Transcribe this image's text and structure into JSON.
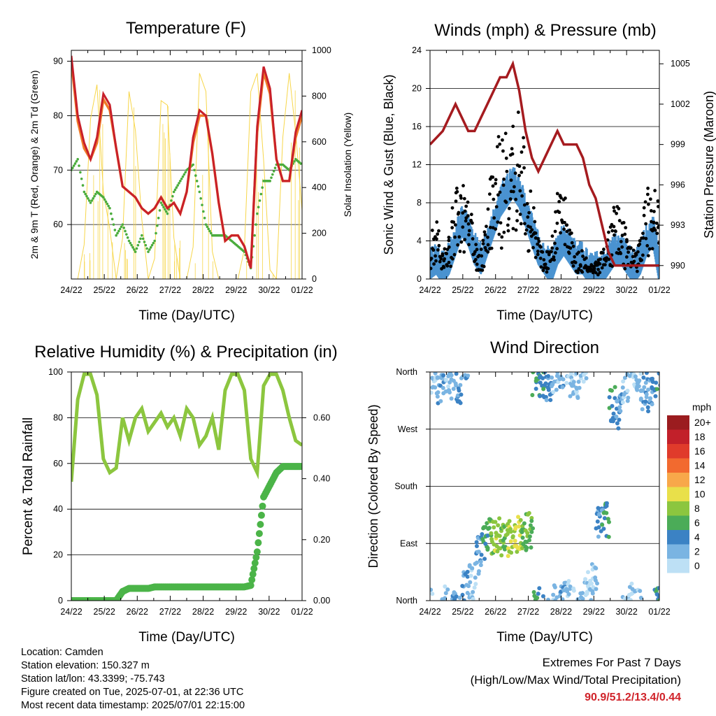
{
  "x_tick_labels": [
    "24/22",
    "25/22",
    "26/22",
    "27/22",
    "28/22",
    "29/22",
    "30/22",
    "01/22"
  ],
  "info": {
    "location": "Location: Camden",
    "elevation": "Station elevation: 150.327 m",
    "latlon": "Station lat/lon: 43.3399; -75.743",
    "created": "Figure created on Tue, 2025-07-01, at 22:36 UTC",
    "latest": "Most recent data timestamp: 2025/07/01 22:15:00"
  },
  "extremes": {
    "title": "Extremes For Past 7 Days",
    "subtitle": "(High/Low/Max Wind/Total Precipitation)",
    "values": "90.9/51.2/13.4/0.44"
  },
  "colors": {
    "temp_red": "#c8202a",
    "temp_orange": "#f07a28",
    "dewpoint_green": "#4aac3c",
    "solar_yellow": "#f7d64a",
    "wind_blue": "#4a93d0",
    "gust_black": "#000000",
    "pressure_maroon": "#a51b1f",
    "rh_green": "#8cc63f",
    "rain_green": "#4bb448"
  },
  "chart_data": [
    {
      "type": "line",
      "title": "Temperature (F)",
      "xlabel": "Time (Day/UTC)",
      "ylabel": "2m & 9m T (Red, Orange) & 2m Td (Green)",
      "y2label": "Solar Insolation (Yellow)",
      "ylim": [
        50,
        92
      ],
      "yticks": [
        60,
        70,
        80,
        90
      ],
      "y2lim": [
        0,
        1000
      ],
      "y2ticks": [
        0,
        200,
        400,
        600,
        800,
        1000
      ],
      "x": [
        "24/22",
        "24/18",
        "25/00",
        "25/06",
        "25/12",
        "25/18",
        "25/22",
        "26/03",
        "26/08",
        "26/13",
        "26/18",
        "26/22",
        "27/04",
        "27/09",
        "27/13",
        "27/18",
        "27/22",
        "28/00",
        "28/05",
        "28/10",
        "28/15",
        "28/20",
        "29/02",
        "29/08",
        "29/13",
        "29/18",
        "29/22",
        "30/03",
        "30/08",
        "30/14",
        "30/19",
        "30/22",
        "01/02",
        "01/06",
        "01/12",
        "01/18",
        "01/22"
      ],
      "series": [
        {
          "name": "2m T",
          "values": [
            91,
            80,
            75,
            72,
            76,
            84,
            82,
            74,
            67,
            66,
            65,
            63,
            62,
            63,
            65,
            63,
            64,
            62,
            66,
            76,
            81,
            80,
            73,
            64,
            57,
            58,
            58,
            56,
            52,
            78,
            89,
            85,
            72,
            68,
            68,
            77,
            81
          ]
        },
        {
          "name": "9m T",
          "values": [
            90,
            79,
            74,
            72,
            75,
            83,
            81,
            74,
            67,
            66,
            65,
            63,
            62,
            63,
            65,
            63,
            64,
            62,
            66,
            75,
            80,
            80,
            73,
            64,
            57,
            58,
            58,
            56,
            52,
            77,
            88,
            84,
            72,
            68,
            68,
            76,
            80
          ]
        },
        {
          "name": "2m Td",
          "values": [
            70,
            72,
            66,
            64,
            66,
            65,
            63,
            58,
            60,
            57,
            55,
            58,
            55,
            57,
            64,
            62,
            66,
            68,
            70,
            71,
            66,
            60,
            58,
            58,
            58,
            57,
            56,
            55,
            52,
            62,
            68,
            68,
            71,
            71,
            70,
            72,
            71
          ]
        },
        {
          "name": "Solar",
          "values": [
            0,
            0,
            150,
            700,
            850,
            380,
            220,
            0,
            180,
            820,
            650,
            260,
            0,
            90,
            780,
            760,
            180,
            0,
            0,
            140,
            900,
            820,
            120,
            0,
            0,
            0,
            0,
            130,
            820,
            900,
            520,
            40,
            0,
            620,
            900,
            640,
            300
          ]
        }
      ]
    },
    {
      "type": "scatter",
      "title": "Winds (mph) & Pressure (mb)",
      "xlabel": "Time (Day/UTC)",
      "ylabel": "Sonic Wind & Gust (Blue, Black)",
      "y2label": "Station Pressure (Maroon)",
      "ylim": [
        0,
        24
      ],
      "yticks": [
        0,
        4,
        8,
        12,
        16,
        20,
        24
      ],
      "y2lim": [
        989,
        1006
      ],
      "y2ticks": [
        990,
        993,
        996,
        999,
        1002,
        1005
      ],
      "x": [
        "24/22",
        "24/18",
        "25/00",
        "25/06",
        "25/12",
        "25/18",
        "25/22",
        "26/03",
        "26/08",
        "26/13",
        "26/18",
        "26/22",
        "27/04",
        "27/09",
        "27/13",
        "27/18",
        "27/22",
        "28/00",
        "28/05",
        "28/10",
        "28/15",
        "28/20",
        "29/02",
        "29/08",
        "29/13",
        "29/18",
        "29/22",
        "30/03",
        "30/08",
        "30/14",
        "30/19",
        "30/22",
        "01/02",
        "01/06",
        "01/12",
        "01/18",
        "01/22"
      ],
      "series": [
        {
          "name": "Wind",
          "values": [
            1.5,
            2,
            1,
            2,
            4,
            6,
            5,
            3,
            2,
            4,
            6,
            8,
            9,
            10,
            9,
            7,
            5,
            3,
            2,
            1,
            3,
            4,
            3,
            2,
            2,
            1,
            1,
            1,
            2,
            3,
            3,
            2,
            1,
            2,
            4,
            5,
            1
          ]
        },
        {
          "name": "Gust",
          "values": [
            5,
            6,
            3,
            5,
            10,
            12,
            9,
            4,
            3,
            9,
            14,
            16,
            17,
            19,
            17,
            13,
            9,
            4,
            3,
            4,
            10,
            9,
            6,
            3,
            3,
            2,
            2,
            3,
            5,
            8,
            7,
            4,
            3,
            5,
            10,
            12,
            6
          ]
        },
        {
          "name": "Pressure",
          "values": [
            999,
            999.5,
            1000,
            1001,
            1002,
            1001,
            1000,
            1000,
            1001,
            1002,
            1003,
            1004,
            1004,
            1005,
            1003,
            1000,
            998,
            997,
            998,
            999,
            1000,
            999,
            999,
            999,
            998,
            996,
            995,
            993,
            991,
            990,
            990,
            990,
            990,
            990,
            990,
            990,
            990
          ]
        }
      ]
    },
    {
      "type": "line",
      "title": "Relative Humidity (%) & Precipitation (in)",
      "xlabel": "Time (Day/UTC)",
      "ylabel": "Percent & Total Rainfall",
      "ylim": [
        0,
        100
      ],
      "yticks": [
        0,
        20,
        40,
        60,
        80,
        100
      ],
      "y2lim": [
        0,
        0.75
      ],
      "y2ticks": [
        0.0,
        0.2,
        0.4,
        0.6
      ],
      "y2ticklabels": [
        "0.00",
        "0.20",
        "0.40",
        "0.60"
      ],
      "x": [
        "24/22",
        "24/18",
        "25/00",
        "25/06",
        "25/12",
        "25/18",
        "25/22",
        "26/03",
        "26/08",
        "26/13",
        "26/18",
        "26/22",
        "27/04",
        "27/09",
        "27/13",
        "27/18",
        "27/22",
        "28/00",
        "28/05",
        "28/10",
        "28/15",
        "28/20",
        "29/02",
        "29/08",
        "29/13",
        "29/18",
        "29/22",
        "30/03",
        "30/08",
        "30/14",
        "30/19",
        "30/22",
        "01/02",
        "01/06",
        "01/12",
        "01/18",
        "01/22"
      ],
      "series": [
        {
          "name": "RH",
          "values": [
            52,
            88,
            99,
            99,
            90,
            62,
            56,
            58,
            80,
            70,
            80,
            84,
            74,
            78,
            82,
            76,
            80,
            72,
            84,
            80,
            68,
            72,
            80,
            66,
            92,
            99,
            99,
            92,
            62,
            56,
            94,
            99,
            99,
            92,
            80,
            70,
            68
          ]
        },
        {
          "name": "Rain",
          "values": [
            0,
            0,
            0,
            0,
            0,
            0,
            0,
            0,
            0.03,
            0.04,
            0.04,
            0.04,
            0.04,
            0.045,
            0.045,
            0.045,
            0.045,
            0.045,
            0.045,
            0.045,
            0.045,
            0.045,
            0.045,
            0.045,
            0.045,
            0.045,
            0.045,
            0.045,
            0.05,
            0.16,
            0.34,
            0.38,
            0.42,
            0.44,
            0.44,
            0.44,
            0.44
          ]
        }
      ]
    },
    {
      "type": "scatter",
      "title": "Wind Direction",
      "xlabel": "Time (Day/UTC)",
      "ylabel": "Direction (Colored By Speed)",
      "yticks": [
        "North",
        "East",
        "South",
        "West",
        "North"
      ],
      "ylim": [
        0,
        360
      ],
      "colorbar": {
        "title": "mph",
        "labels": [
          "20+",
          "18",
          "16",
          "14",
          "12",
          "10",
          "8",
          "6",
          "4",
          "2",
          "0"
        ],
        "colors": [
          "#9b1c1f",
          "#c2202a",
          "#e03b2b",
          "#f26a2f",
          "#f8a84a",
          "#e9e04a",
          "#8cc63f",
          "#4bac58",
          "#3b82c4",
          "#7ab4e2",
          "#bde0f5"
        ]
      },
      "x": [
        "24/22",
        "24/18",
        "25/00",
        "25/06",
        "25/12",
        "25/18",
        "25/22",
        "26/03",
        "26/08",
        "26/13",
        "26/18",
        "26/22",
        "27/04",
        "27/09",
        "27/13",
        "27/18",
        "27/22",
        "28/00",
        "28/05",
        "28/10",
        "28/15",
        "28/20",
        "29/02",
        "29/08",
        "29/13",
        "29/18",
        "29/22",
        "30/03",
        "30/08",
        "30/14",
        "30/19",
        "30/22",
        "01/02",
        "01/06",
        "01/12",
        "01/18",
        "01/22"
      ],
      "series": [
        {
          "name": "Direction",
          "values": [
            350,
            340,
            355,
            345,
            340,
            20,
            30,
            70,
            95,
            100,
            100,
            95,
            100,
            105,
            100,
            110,
            350,
            345,
            340,
            355,
            5,
            10,
            350,
            345,
            15,
            30,
            120,
            130,
            310,
            300,
            340,
            5,
            350,
            330,
            320,
            350,
            340
          ]
        },
        {
          "name": "Speed",
          "values": [
            2,
            3,
            2,
            3,
            4,
            3,
            2,
            3,
            6,
            8,
            9,
            8,
            9,
            10,
            8,
            7,
            6,
            5,
            4,
            2,
            3,
            2,
            2,
            2,
            1,
            2,
            4,
            6,
            5,
            4,
            2,
            1,
            2,
            3,
            4,
            5,
            3
          ]
        }
      ]
    }
  ]
}
